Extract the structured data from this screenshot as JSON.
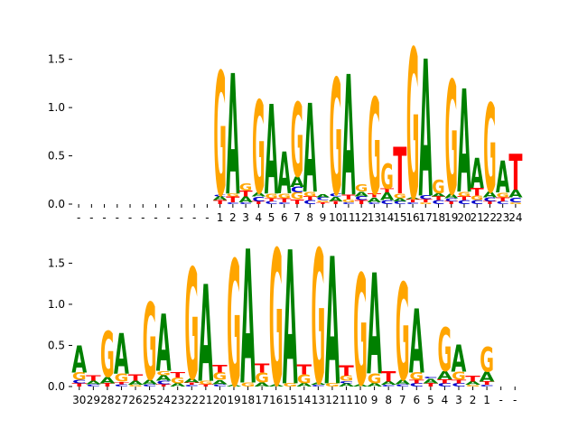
{
  "colors": {
    "A": "#008000",
    "C": "#0000cc",
    "G": "#ffa500",
    "T": "#ff0000",
    "axis": "#000000"
  },
  "chart_data": [
    {
      "type": "sequence-logo",
      "title": "",
      "xlabel": "",
      "ylabel": "",
      "ylim": [
        0,
        1.6
      ],
      "yticks": [
        "0.0",
        "0.5",
        "1.0",
        "1.5"
      ],
      "ytick_values": [
        0,
        0.5,
        1.0,
        1.5
      ],
      "grid": false,
      "legend": "none",
      "x_labels": [
        "-",
        "-",
        "-",
        "-",
        "-",
        "-",
        "-",
        "-",
        "-",
        "-",
        "-",
        "1",
        "2",
        "3",
        "4",
        "5",
        "6",
        "7",
        "8",
        "9",
        "10",
        "11",
        "12",
        "13",
        "14",
        "15",
        "16",
        "17",
        "18",
        "19",
        "20",
        "21",
        "22",
        "23",
        "24"
      ],
      "columns": [
        [],
        [],
        [],
        [],
        [],
        [],
        [],
        [],
        [],
        [],
        [],
        [
          [
            "T",
            0.04
          ],
          [
            "A",
            0.04
          ],
          [
            "C",
            0.02
          ],
          [
            "G",
            1.28
          ]
        ],
        [
          [
            "C",
            0.02
          ],
          [
            "T",
            0.06
          ],
          [
            "G",
            0.03
          ],
          [
            "A",
            1.25
          ]
        ],
        [
          [
            "C",
            0.02
          ],
          [
            "A",
            0.06
          ],
          [
            "T",
            0.06
          ],
          [
            "G",
            0.07
          ]
        ],
        [
          [
            "T",
            0.03
          ],
          [
            "C",
            0.05
          ],
          [
            "A",
            0.04
          ],
          [
            "G",
            0.96
          ]
        ],
        [
          [
            "C",
            0.03
          ],
          [
            "T",
            0.03
          ],
          [
            "G",
            0.05
          ],
          [
            "A",
            0.93
          ]
        ],
        [
          [
            "C",
            0.02
          ],
          [
            "T",
            0.04
          ],
          [
            "G",
            0.05
          ],
          [
            "A",
            0.43
          ]
        ],
        [
          [
            "T",
            0.05
          ],
          [
            "G",
            0.07
          ],
          [
            "C",
            0.06
          ],
          [
            "A",
            0.11
          ],
          [
            "G",
            0.77
          ]
        ],
        [
          [
            "C",
            0.04
          ],
          [
            "T",
            0.04
          ],
          [
            "G",
            0.05
          ],
          [
            "A",
            0.92
          ]
        ],
        [
          [
            "T",
            0.02
          ],
          [
            "G",
            0.02
          ],
          [
            "C",
            0.03
          ],
          [
            "A",
            0.03
          ]
        ],
        [
          [
            "T",
            0.03
          ],
          [
            "A",
            0.05
          ],
          [
            "C",
            0.03
          ],
          [
            "G",
            1.2
          ]
        ],
        [
          [
            "C",
            0.02
          ],
          [
            "G",
            0.03
          ],
          [
            "T",
            0.05
          ],
          [
            "A",
            1.25
          ]
        ],
        [
          [
            "T",
            0.04
          ],
          [
            "C",
            0.04
          ],
          [
            "A",
            0.05
          ],
          [
            "G",
            0.07
          ]
        ],
        [
          [
            "C",
            0.02
          ],
          [
            "A",
            0.05
          ],
          [
            "T",
            0.04
          ],
          [
            "G",
            1.0
          ]
        ],
        [
          [
            "C",
            0.04
          ],
          [
            "A",
            0.08
          ],
          [
            "T",
            0.04
          ],
          [
            "G",
            0.26
          ]
        ],
        [
          [
            "C",
            0.03
          ],
          [
            "A",
            0.03
          ],
          [
            "G",
            0.05
          ],
          [
            "T",
            0.48
          ]
        ],
        [
          [
            "C",
            0.02
          ],
          [
            "T",
            0.03
          ],
          [
            "A",
            0.02
          ],
          [
            "G",
            1.55
          ]
        ],
        [
          [
            "G",
            0.02
          ],
          [
            "T",
            0.03
          ],
          [
            "C",
            0.04
          ],
          [
            "A",
            1.42
          ]
        ],
        [
          [
            "C",
            0.04
          ],
          [
            "T",
            0.04
          ],
          [
            "A",
            0.03
          ],
          [
            "G",
            0.14
          ]
        ],
        [
          [
            "T",
            0.03
          ],
          [
            "C",
            0.03
          ],
          [
            "A",
            0.05
          ],
          [
            "G",
            1.18
          ]
        ],
        [
          [
            "C",
            0.04
          ],
          [
            "T",
            0.04
          ],
          [
            "G",
            0.05
          ],
          [
            "A",
            1.07
          ]
        ],
        [
          [
            "C",
            0.04
          ],
          [
            "G",
            0.05
          ],
          [
            "T",
            0.08
          ],
          [
            "A",
            0.31
          ]
        ],
        [
          [
            "T",
            0.03
          ],
          [
            "C",
            0.04
          ],
          [
            "A",
            0.06
          ],
          [
            "G",
            0.92
          ]
        ],
        [
          [
            "C",
            0.03
          ],
          [
            "T",
            0.04
          ],
          [
            "G",
            0.05
          ],
          [
            "A",
            0.33
          ]
        ],
        [
          [
            "G",
            0.02
          ],
          [
            "C",
            0.05
          ],
          [
            "A",
            0.08
          ],
          [
            "T",
            0.37
          ]
        ]
      ]
    },
    {
      "type": "sequence-logo",
      "title": "",
      "xlabel": "",
      "ylabel": "",
      "ylim": [
        0,
        1.9
      ],
      "yticks": [
        "0.0",
        "0.5",
        "1.0",
        "1.5"
      ],
      "ytick_values": [
        0,
        0.5,
        1.0,
        1.5
      ],
      "grid": false,
      "legend": "none",
      "x_labels": [
        "30",
        "29",
        "28",
        "27",
        "26",
        "25",
        "24",
        "23",
        "22",
        "21",
        "20",
        "19",
        "18",
        "17",
        "16",
        "15",
        "14",
        "13",
        "12",
        "11",
        "10",
        "9",
        "8",
        "7",
        "6",
        "5",
        "4",
        "3",
        "2",
        "1",
        "-",
        "-"
      ],
      "columns": [
        [
          [
            "T",
            0.04
          ],
          [
            "C",
            0.04
          ],
          [
            "G",
            0.09
          ],
          [
            "A",
            0.33
          ]
        ],
        [
          [
            "C",
            0.03
          ],
          [
            "A",
            0.04
          ],
          [
            "T",
            0.06
          ]
        ],
        [
          [
            "T",
            0.04
          ],
          [
            "A",
            0.08
          ],
          [
            "G",
            0.56
          ]
        ],
        [
          [
            "C",
            0.03
          ],
          [
            "T",
            0.03
          ],
          [
            "G",
            0.1
          ],
          [
            "A",
            0.49
          ]
        ],
        [
          [
            "G",
            0.02
          ],
          [
            "A",
            0.05
          ],
          [
            "T",
            0.08
          ]
        ],
        [
          [
            "C",
            0.03
          ],
          [
            "A",
            0.06
          ],
          [
            "G",
            0.94
          ]
        ],
        [
          [
            "T",
            0.03
          ],
          [
            "C",
            0.04
          ],
          [
            "A",
            0.07
          ],
          [
            "G",
            0.05
          ],
          [
            "A",
            0.69
          ]
        ],
        [
          [
            "A",
            0.04
          ],
          [
            "G",
            0.07
          ],
          [
            "T",
            0.06
          ]
        ],
        [
          [
            "C",
            0.02
          ],
          [
            "T",
            0.03
          ],
          [
            "A",
            0.05
          ],
          [
            "G",
            1.35
          ]
        ],
        [
          [
            "T",
            0.03
          ],
          [
            "G",
            0.04
          ],
          [
            "A",
            1.18
          ]
        ],
        [
          [
            "C",
            0.03
          ],
          [
            "A",
            0.05
          ],
          [
            "G",
            0.09
          ],
          [
            "T",
            0.09
          ]
        ],
        [
          [
            "A",
            0.02
          ],
          [
            "G",
            1.53
          ]
        ],
        [
          [
            "G",
            0.05
          ],
          [
            "A",
            1.63
          ]
        ],
        [
          [
            "A",
            0.05
          ],
          [
            "G",
            0.12
          ],
          [
            "T",
            0.11
          ]
        ],
        [
          [
            "A",
            0.03
          ],
          [
            "G",
            1.65
          ]
        ],
        [
          [
            "G",
            0.04
          ],
          [
            "A",
            1.63
          ]
        ],
        [
          [
            "A",
            0.04
          ],
          [
            "G",
            0.11
          ],
          [
            "T",
            0.12
          ]
        ],
        [
          [
            "C",
            0.02
          ],
          [
            "A",
            0.03
          ],
          [
            "G",
            1.63
          ]
        ],
        [
          [
            "G",
            0.04
          ],
          [
            "A",
            1.55
          ]
        ],
        [
          [
            "A",
            0.04
          ],
          [
            "C",
            0.03
          ],
          [
            "G",
            0.06
          ],
          [
            "T",
            0.13
          ]
        ],
        [
          [
            "A",
            0.03
          ],
          [
            "G",
            1.35
          ]
        ],
        [
          [
            "A",
            0.04
          ],
          [
            "G",
            0.12
          ],
          [
            "A",
            1.23
          ]
        ],
        [
          [
            "C",
            0.02
          ],
          [
            "A",
            0.04
          ],
          [
            "T",
            0.13
          ]
        ],
        [
          [
            "C",
            0.03
          ],
          [
            "A",
            0.06
          ],
          [
            "G",
            1.18
          ]
        ],
        [
          [
            "C",
            0.04
          ],
          [
            "T",
            0.04
          ],
          [
            "G",
            0.09
          ],
          [
            "A",
            0.78
          ]
        ],
        [
          [
            "T",
            0.04
          ],
          [
            "A",
            0.06
          ],
          [
            "C",
            0.02
          ]
        ],
        [
          [
            "C",
            0.04
          ],
          [
            "T",
            0.05
          ],
          [
            "A",
            0.1
          ],
          [
            "G",
            0.53
          ]
        ],
        [
          [
            "C",
            0.04
          ],
          [
            "T",
            0.04
          ],
          [
            "G",
            0.1
          ],
          [
            "A",
            0.33
          ]
        ],
        [
          [
            "G",
            0.02
          ],
          [
            "A",
            0.04
          ],
          [
            "T",
            0.07
          ]
        ],
        [
          [
            "C",
            0.02
          ],
          [
            "T",
            0.04
          ],
          [
            "A",
            0.12
          ],
          [
            "G",
            0.3
          ]
        ],
        [],
        []
      ]
    }
  ]
}
